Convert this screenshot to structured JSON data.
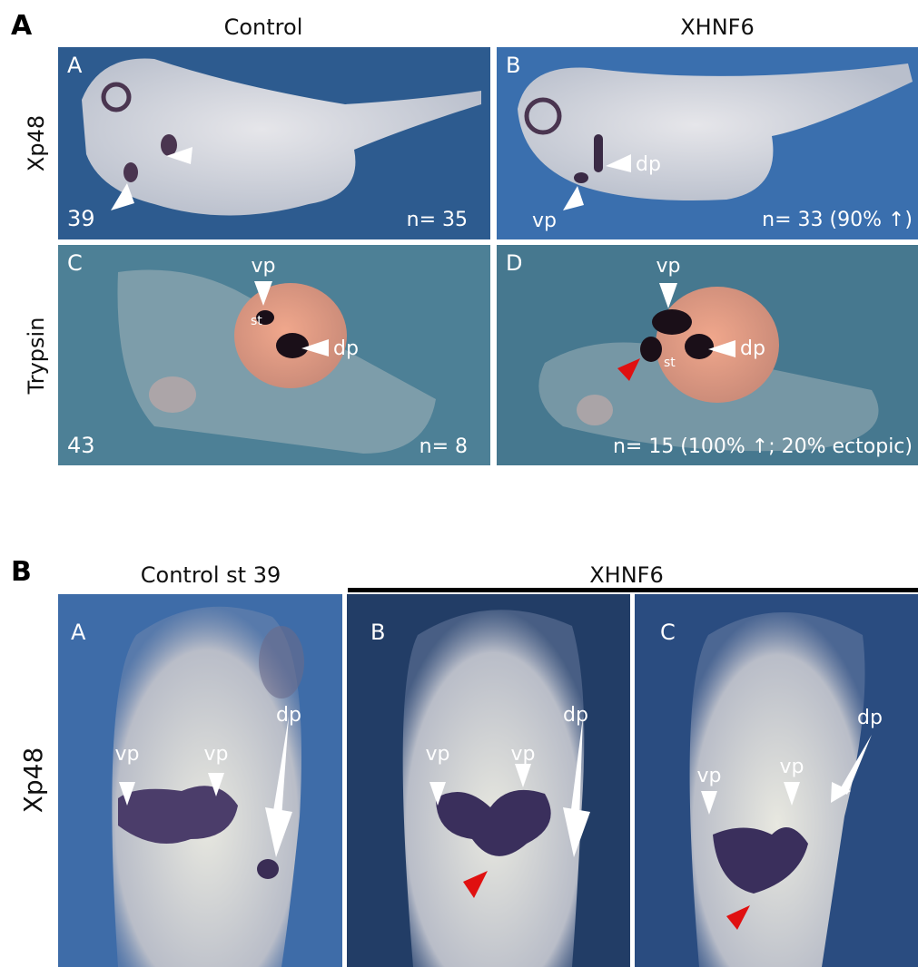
{
  "figure_a": {
    "label": "A",
    "columns": [
      "Control",
      "XHNF6"
    ],
    "rows": [
      "Xp48",
      "Trypsin"
    ],
    "panels": [
      {
        "letter": "A",
        "stage": "39",
        "count": "n= 35"
      },
      {
        "letter": "B",
        "labels": [
          "dp",
          "vp"
        ],
        "count": "n= 33 (90% ↑)"
      },
      {
        "letter": "C",
        "stage": "43",
        "labels": [
          "vp",
          "st",
          "dp"
        ],
        "count": "n= 8"
      },
      {
        "letter": "D",
        "labels": [
          "vp",
          "st",
          "dp"
        ],
        "count": "n= 15 (100% ↑; 20% ectopic)"
      }
    ]
  },
  "figure_b": {
    "label": "B",
    "columns": [
      "Control st 39",
      "XHNF6"
    ],
    "row": "Xp48",
    "panels": [
      {
        "letter": "A",
        "labels": [
          "vp",
          "vp",
          "dp"
        ]
      },
      {
        "letter": "B",
        "labels": [
          "vp",
          "vp",
          "dp"
        ]
      },
      {
        "letter": "C",
        "labels": [
          "vp",
          "vp",
          "dp"
        ]
      }
    ]
  }
}
